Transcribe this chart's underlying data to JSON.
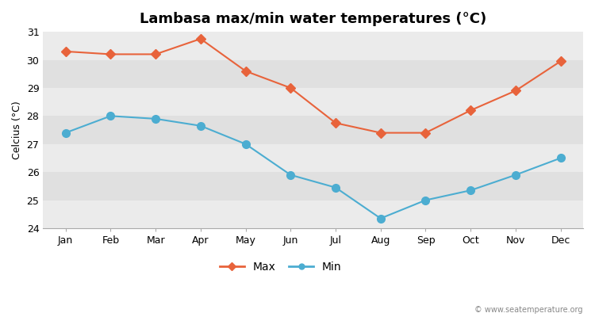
{
  "months": [
    "Jan",
    "Feb",
    "Mar",
    "Apr",
    "May",
    "Jun",
    "Jul",
    "Aug",
    "Sep",
    "Oct",
    "Nov",
    "Dec"
  ],
  "max_temps": [
    30.3,
    30.2,
    30.2,
    30.75,
    29.6,
    29.0,
    27.75,
    27.4,
    27.4,
    28.2,
    28.9,
    29.95
  ],
  "min_temps": [
    27.4,
    28.0,
    27.9,
    27.65,
    27.0,
    25.9,
    25.45,
    24.35,
    25.0,
    25.35,
    25.9,
    26.5
  ],
  "max_color": "#e8633b",
  "min_color": "#4cadd1",
  "bg_color_light": "#ebebeb",
  "bg_color_dark": "#e0e0e0",
  "title": "Lambasa max/min water temperatures (°C)",
  "ylabel": "Celcius (°C)",
  "ylim": [
    24,
    31
  ],
  "yticks": [
    24,
    25,
    26,
    27,
    28,
    29,
    30,
    31
  ],
  "watermark": "© www.seatemperature.org",
  "title_fontsize": 13,
  "axis_fontsize": 9,
  "tick_fontsize": 9,
  "legend_labels": [
    "Max",
    "Min"
  ],
  "marker_size_max": 6,
  "marker_size_min": 7,
  "linewidth": 1.5
}
